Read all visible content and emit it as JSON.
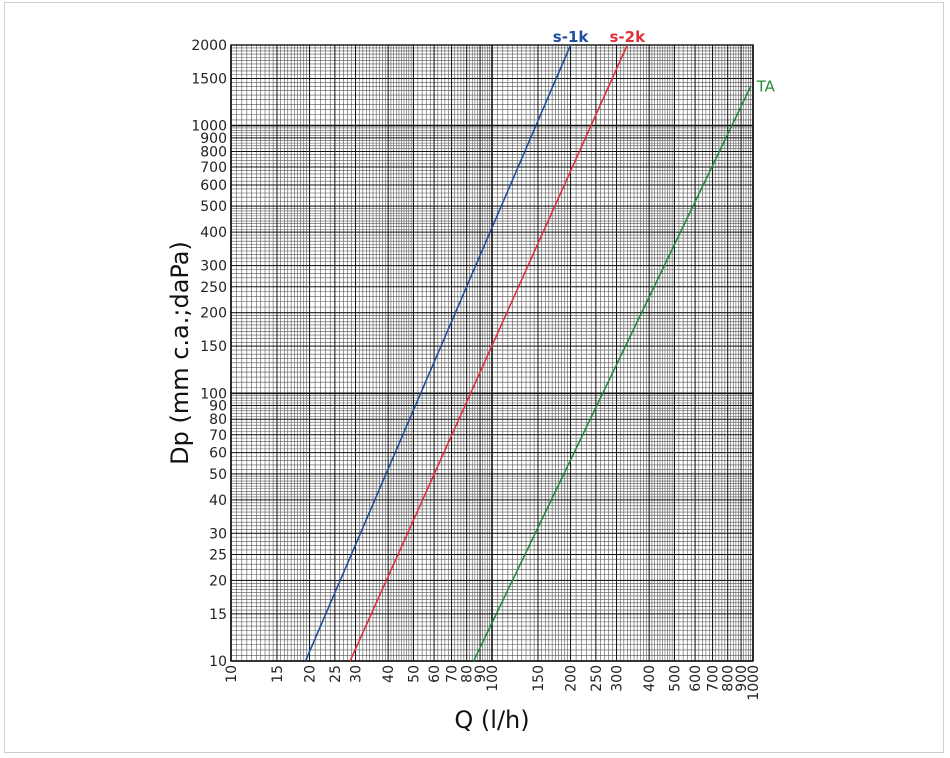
{
  "chart_data": {
    "type": "line",
    "xscale": "log",
    "yscale": "log",
    "xlim": [
      10,
      1000
    ],
    "ylim": [
      10,
      2000
    ],
    "xlabel": "Q (l/h)",
    "ylabel": "Dp (mm c.a.;daPa)",
    "x_ticks": [
      10,
      15,
      20,
      25,
      30,
      40,
      50,
      60,
      70,
      80,
      90,
      100,
      150,
      200,
      250,
      300,
      400,
      500,
      600,
      700,
      800,
      900,
      1000
    ],
    "y_ticks": [
      10,
      15,
      20,
      25,
      30,
      40,
      50,
      60,
      70,
      80,
      90,
      100,
      150,
      200,
      250,
      300,
      400,
      500,
      600,
      700,
      800,
      900,
      1000,
      1500,
      2000
    ],
    "grid": true,
    "series": [
      {
        "name": "s-1k",
        "color": "#1f4f9f",
        "x": [
          19.3,
          200
        ],
        "y": [
          10,
          2000
        ]
      },
      {
        "name": "s-2k",
        "color": "#e0303a",
        "x": [
          28.6,
          330
        ],
        "y": [
          10,
          2000
        ]
      },
      {
        "name": "TA",
        "color": "#1e8c3c",
        "x": [
          85,
          980
        ],
        "y": [
          10,
          1400
        ]
      }
    ]
  }
}
